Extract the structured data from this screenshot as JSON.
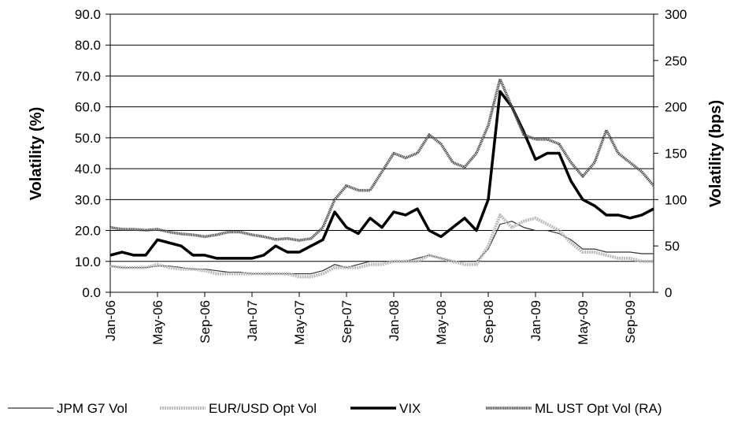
{
  "chart_data": {
    "type": "line",
    "y_label": "Volatility (%)",
    "y2_label": "Volatility (bps)",
    "categories": [
      "Jan-06",
      null,
      null,
      null,
      "May-06",
      null,
      null,
      null,
      "Sep-06",
      null,
      null,
      null,
      "Jan-07",
      null,
      null,
      null,
      "May-07",
      null,
      null,
      null,
      "Sep-07",
      null,
      null,
      null,
      "Jan-08",
      null,
      null,
      null,
      "May-08",
      null,
      null,
      null,
      "Sep-08",
      null,
      null,
      null,
      "Jan-09",
      null,
      null,
      null,
      "May-09",
      null,
      null,
      null,
      "Sep-09",
      null,
      null
    ],
    "ylim": [
      0,
      90
    ],
    "yticks": [
      {
        "value": 0,
        "label": "0.0"
      },
      {
        "value": 10,
        "label": "10.0"
      },
      {
        "value": 20,
        "label": "20.0"
      },
      {
        "value": 30,
        "label": "30.0"
      },
      {
        "value": 40,
        "label": "40.0"
      },
      {
        "value": 50,
        "label": "50.0"
      },
      {
        "value": 60,
        "label": "60.0"
      },
      {
        "value": 70,
        "label": "70.0"
      },
      {
        "value": 80,
        "label": "80.0"
      },
      {
        "value": 90,
        "label": "90.0"
      }
    ],
    "y2lim": [
      0,
      300
    ],
    "y2ticks": [
      0,
      50,
      100,
      150,
      200,
      250,
      300
    ],
    "grid": true,
    "series": [
      {
        "name": "JPM G7 Vol",
        "color": "#333333",
        "values": [
          8.5,
          8,
          8,
          8,
          8.5,
          8.5,
          8,
          7.5,
          7.5,
          7,
          6.5,
          6.5,
          6,
          6,
          6,
          6,
          6,
          6,
          7,
          9,
          8,
          9,
          10,
          10,
          10,
          10,
          11,
          12,
          11,
          10,
          10,
          10,
          14,
          22,
          23,
          21,
          20,
          20,
          19,
          17,
          14,
          14,
          13,
          13,
          13,
          12.5,
          12.5
        ]
      },
      {
        "name": "EUR/USD Opt Vol",
        "color": "#bbbbbb",
        "values": [
          8.5,
          8,
          8,
          8,
          9,
          8,
          7.5,
          7.5,
          7,
          6,
          6,
          6,
          6,
          6,
          6,
          6,
          5,
          5,
          6,
          8,
          8,
          8,
          9,
          9,
          10,
          10,
          10,
          12,
          11,
          10,
          9,
          9,
          15,
          25,
          21,
          23,
          24,
          22,
          20,
          16,
          13,
          13,
          12,
          11,
          11,
          10,
          10
        ]
      },
      {
        "name": "VIX",
        "color": "#000000",
        "values": [
          12,
          13,
          12,
          12,
          17,
          16,
          15,
          12,
          12,
          11,
          11,
          11,
          11,
          12,
          15,
          13,
          13,
          15,
          17,
          26,
          21,
          19,
          24,
          21,
          26,
          25,
          27,
          20,
          18,
          21,
          24,
          20,
          30,
          65,
          60,
          52,
          43,
          45,
          45,
          36,
          30,
          28,
          25,
          25,
          24,
          25,
          27
        ]
      },
      {
        "name": "ML UST Opt Vol (RA)",
        "color": "#555555",
        "axis": "y2",
        "values": [
          70,
          68,
          68,
          67,
          68,
          65,
          63,
          62,
          60,
          62,
          65,
          65,
          62,
          60,
          57,
          58,
          56,
          58,
          70,
          100,
          115,
          110,
          110,
          130,
          150,
          145,
          150,
          170,
          160,
          140,
          135,
          150,
          180,
          230,
          200,
          170,
          165,
          165,
          160,
          140,
          125,
          140,
          175,
          150,
          140,
          130,
          115
        ]
      }
    ]
  }
}
